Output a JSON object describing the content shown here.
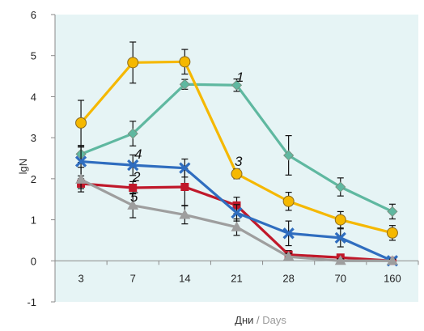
{
  "chart_data": {
    "type": "line",
    "categories": [
      "3",
      "7",
      "14",
      "21",
      "28",
      "70",
      "160"
    ],
    "ylabel": "lgN",
    "xlabel_ru": "Дни",
    "xlabel_sep": " / ",
    "xlabel_en": "Days",
    "ylim": [
      -1,
      6
    ],
    "yticks": [
      "-1",
      "0",
      "1",
      "2",
      "3",
      "4",
      "5",
      "6"
    ],
    "grid": false,
    "plot_background": "#e6f4f5",
    "series": [
      {
        "label": "1",
        "color": "#5fb8a0",
        "marker": "diamond",
        "values": [
          2.6,
          3.1,
          4.3,
          4.28,
          2.57,
          1.8,
          1.2
        ],
        "errors": [
          0.2,
          0.3,
          0.12,
          0.15,
          0.48,
          0.22,
          0.18
        ]
      },
      {
        "label": "2",
        "color": "#c0182a",
        "marker": "square",
        "values": [
          1.88,
          1.78,
          1.8,
          1.35,
          0.15,
          0.08,
          0.0
        ],
        "errors": [
          0.12,
          0.15,
          0.45,
          0.2,
          0.1,
          0.06,
          0.04
        ]
      },
      {
        "label": "3",
        "color": "#f5b800",
        "marker": "circle",
        "values": [
          3.36,
          4.83,
          4.85,
          2.12,
          1.45,
          1.0,
          0.68
        ],
        "errors": [
          0.55,
          0.5,
          0.3,
          0.12,
          0.22,
          0.2,
          0.18
        ]
      },
      {
        "label": "4",
        "color": "#2f6dbf",
        "marker": "x",
        "values": [
          2.42,
          2.33,
          2.26,
          1.17,
          0.67,
          0.56,
          0.0
        ],
        "errors": [
          0.35,
          0.25,
          0.22,
          0.2,
          0.3,
          0.22,
          0.05
        ]
      },
      {
        "label": "5",
        "color": "#9e9e9e",
        "marker": "triangle",
        "values": [
          1.98,
          1.35,
          1.12,
          0.82,
          0.1,
          0.0,
          0.0
        ],
        "errors": [
          0.3,
          0.3,
          0.22,
          0.2,
          0.08,
          0.05,
          0.04
        ]
      }
    ]
  }
}
